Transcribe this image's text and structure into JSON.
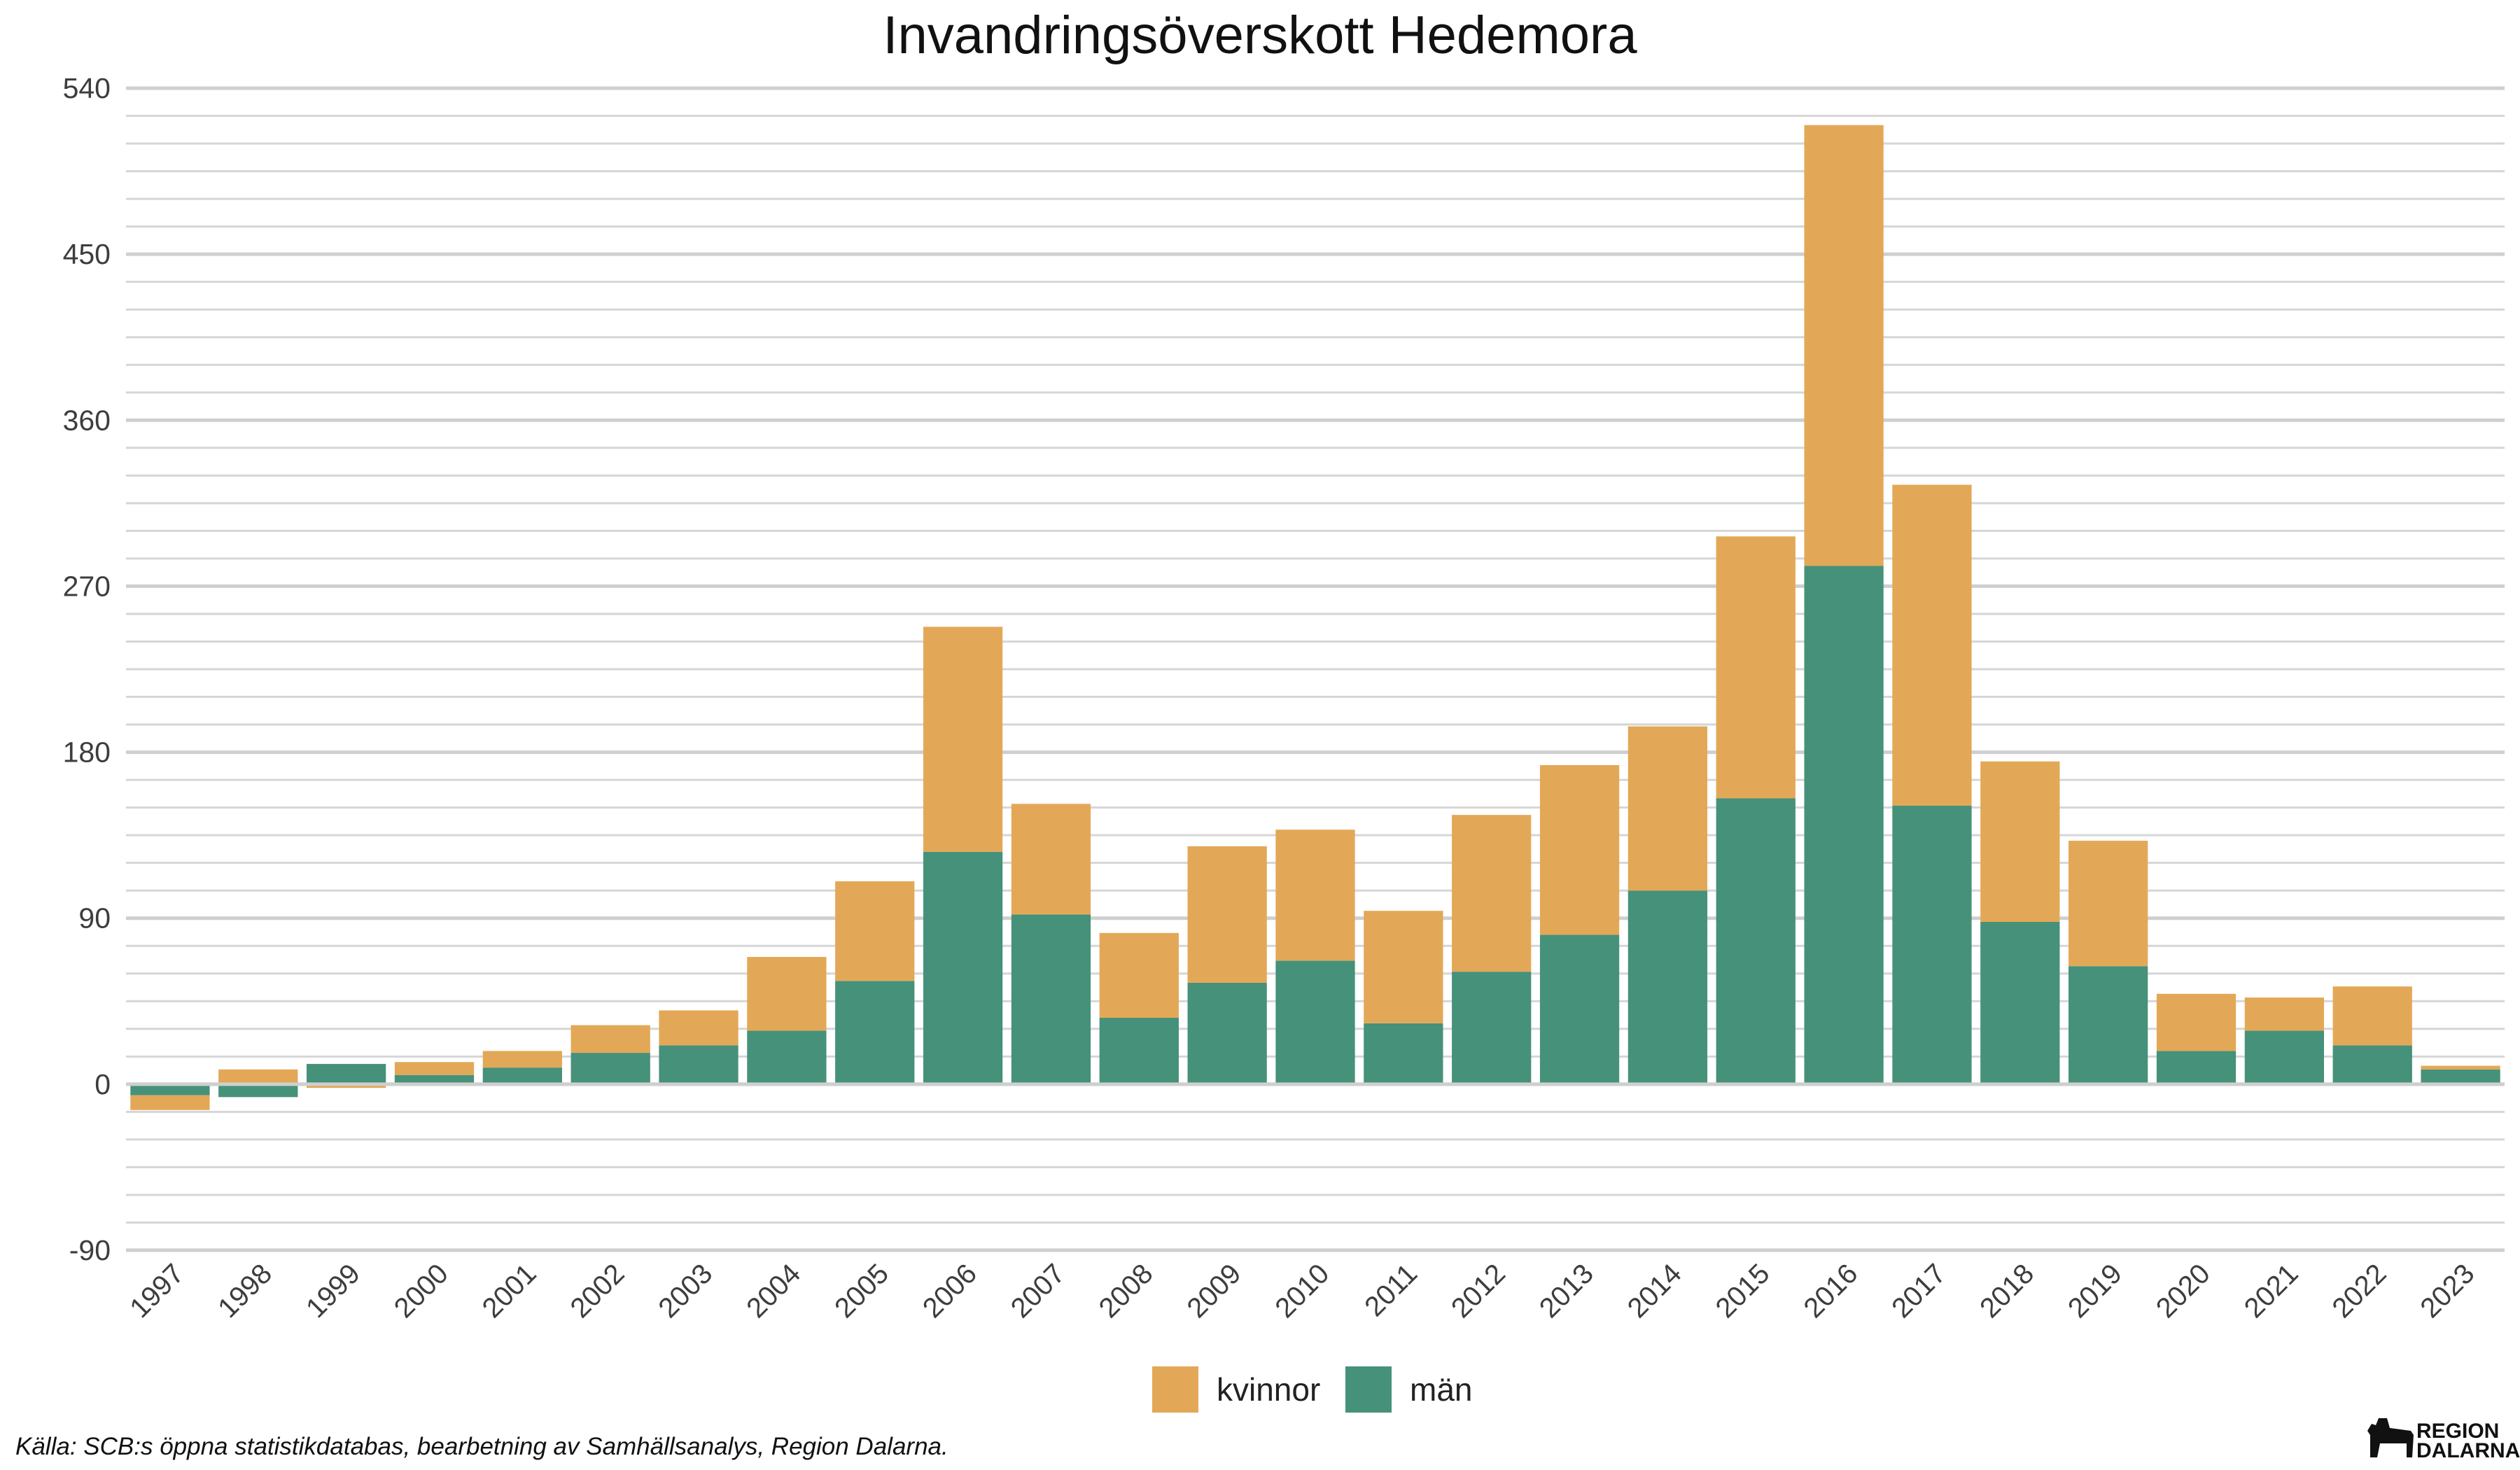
{
  "chart_data": {
    "type": "bar",
    "stacked": true,
    "title": "Invandringsöverskott Hedemora",
    "xlabel": "",
    "ylabel": "",
    "ylim": [
      -90,
      540
    ],
    "yticks": [
      -90,
      0,
      90,
      180,
      270,
      360,
      450,
      540
    ],
    "grid": true,
    "legend_position": "bottom",
    "categories": [
      "1997",
      "1998",
      "1999",
      "2000",
      "2001",
      "2002",
      "2003",
      "2004",
      "2005",
      "2006",
      "2007",
      "2008",
      "2009",
      "2010",
      "2011",
      "2012",
      "2013",
      "2014",
      "2015",
      "2016",
      "2017",
      "2018",
      "2019",
      "2020",
      "2021",
      "2022",
      "2023"
    ],
    "series": [
      {
        "name": "kvinnor",
        "color": "#E3A857",
        "values": [
          -8,
          8,
          -2,
          7,
          9,
          15,
          19,
          40,
          54,
          122,
          60,
          46,
          74,
          71,
          61,
          85,
          92,
          89,
          142,
          239,
          174,
          87,
          68,
          31,
          18,
          32,
          2
        ]
      },
      {
        "name": "män",
        "color": "#46917A",
        "values": [
          -6,
          -7,
          11,
          5,
          9,
          17,
          21,
          29,
          56,
          126,
          92,
          36,
          55,
          67,
          33,
          61,
          81,
          105,
          155,
          281,
          151,
          88,
          64,
          18,
          29,
          21,
          8
        ]
      }
    ]
  },
  "footer": {
    "source": "Källa: SCB:s öppna statistikdatabas, bearbetning av Samhällsanalys, Region Dalarna."
  },
  "logo": {
    "line1": "REGION",
    "line2": "DALARNA"
  }
}
